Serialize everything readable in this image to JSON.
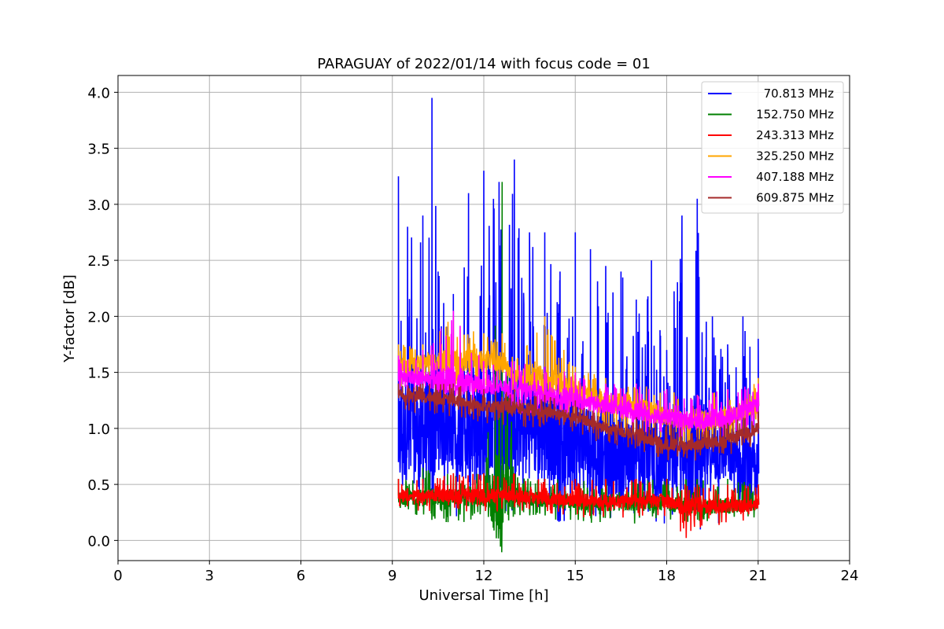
{
  "chart_data": {
    "type": "line",
    "title": "PARAGUAY of 2022/01/14 with focus code = 01",
    "xlabel": "Universal Time [h]",
    "ylabel": "Y-factor [dB]",
    "xlim": [
      0,
      24
    ],
    "ylim": [
      -0.18,
      4.15
    ],
    "xticks": [
      0,
      3,
      6,
      9,
      12,
      15,
      18,
      21,
      24
    ],
    "yticks": [
      0.0,
      0.5,
      1.0,
      1.5,
      2.0,
      2.5,
      3.0,
      3.5,
      4.0
    ],
    "xtick_labels": [
      "0",
      "3",
      "6",
      "9",
      "12",
      "15",
      "18",
      "21",
      "24"
    ],
    "ytick_labels": [
      "0.0",
      "0.5",
      "1.0",
      "1.5",
      "2.0",
      "2.5",
      "3.0",
      "3.5",
      "4.0"
    ],
    "grid": true,
    "legend_position": "top-right",
    "series": [
      {
        "name": "70.813 MHz",
        "color": "#0000ff",
        "x": [
          9.2,
          9.5,
          10.0,
          10.3,
          10.5,
          11.0,
          11.5,
          12.0,
          12.5,
          13.0,
          13.5,
          14.0,
          14.5,
          15.0,
          15.5,
          16.0,
          16.5,
          17.0,
          17.5,
          18.0,
          18.5,
          19.0,
          19.5,
          20.0,
          20.5,
          21.0
        ],
        "baseline": [
          0.9,
          1.0,
          0.9,
          1.0,
          1.0,
          1.0,
          1.0,
          1.0,
          1.0,
          1.0,
          1.0,
          1.0,
          0.9,
          0.9,
          0.8,
          0.8,
          0.7,
          0.7,
          0.7,
          0.7,
          0.8,
          0.8,
          0.8,
          0.8,
          0.6,
          0.6
        ],
        "upper": [
          3.25,
          2.8,
          2.9,
          3.95,
          2.4,
          2.2,
          3.1,
          3.3,
          3.2,
          3.4,
          2.75,
          2.75,
          2.4,
          2.75,
          2.6,
          2.45,
          2.4,
          2.15,
          2.5,
          1.7,
          2.9,
          3.05,
          2.0,
          1.75,
          2.0,
          1.8
        ],
        "lower": [
          0.3,
          0.25,
          0.25,
          0.3,
          0.25,
          0.2,
          0.25,
          0.25,
          0.25,
          0.2,
          0.2,
          0.2,
          0.15,
          0.15,
          0.15,
          0.15,
          0.1,
          0.1,
          0.1,
          0.1,
          0.05,
          0.0,
          0.05,
          0.15,
          0.2,
          0.25
        ]
      },
      {
        "name": "152.750 MHz",
        "color": "#008000",
        "x": [
          9.2,
          10.0,
          11.0,
          12.0,
          12.6,
          13.0,
          14.0,
          15.0,
          16.0,
          17.0,
          18.0,
          19.0,
          20.0,
          21.0
        ],
        "baseline": [
          0.38,
          0.38,
          0.38,
          0.38,
          0.38,
          0.38,
          0.36,
          0.34,
          0.33,
          0.33,
          0.33,
          0.3,
          0.3,
          0.32
        ],
        "upper": [
          0.55,
          0.65,
          0.6,
          0.6,
          3.2,
          0.6,
          0.55,
          0.55,
          0.55,
          0.55,
          0.55,
          0.55,
          0.55,
          0.5
        ],
        "lower": [
          0.22,
          0.2,
          0.1,
          0.2,
          0.2,
          0.2,
          0.18,
          0.16,
          0.15,
          0.15,
          0.15,
          0.15,
          0.15,
          0.2
        ]
      },
      {
        "name": "243.313 MHz",
        "color": "#ff0000",
        "x": [
          9.2,
          10.0,
          11.0,
          12.0,
          13.0,
          14.0,
          15.0,
          16.0,
          17.0,
          18.0,
          18.6,
          19.0,
          20.0,
          21.0
        ],
        "baseline": [
          0.4,
          0.4,
          0.4,
          0.4,
          0.4,
          0.38,
          0.36,
          0.35,
          0.35,
          0.35,
          0.3,
          0.3,
          0.3,
          0.32
        ],
        "upper": [
          0.55,
          0.55,
          0.6,
          0.6,
          0.6,
          0.55,
          0.55,
          0.55,
          0.55,
          0.55,
          0.5,
          0.5,
          0.5,
          0.5
        ],
        "lower": [
          0.25,
          0.25,
          0.25,
          0.25,
          0.25,
          0.22,
          0.2,
          0.2,
          0.2,
          0.2,
          0.0,
          0.1,
          0.15,
          0.2
        ]
      },
      {
        "name": "325.250 MHz",
        "color": "#ffa500",
        "x": [
          9.2,
          10.0,
          11.0,
          12.0,
          12.6,
          13.0,
          14.0,
          15.0,
          16.0,
          17.0,
          18.0,
          19.0,
          20.0,
          21.0
        ],
        "baseline": [
          1.55,
          1.6,
          1.6,
          1.6,
          1.6,
          1.45,
          1.45,
          1.35,
          1.25,
          1.2,
          1.1,
          1.05,
          1.1,
          1.2
        ],
        "upper": [
          1.75,
          1.75,
          2.0,
          1.85,
          1.85,
          1.6,
          2.0,
          1.55,
          1.45,
          1.4,
          1.35,
          1.3,
          1.35,
          1.45
        ],
        "lower": [
          1.35,
          1.4,
          1.35,
          1.3,
          1.3,
          1.2,
          1.15,
          1.05,
          0.95,
          0.9,
          0.85,
          0.8,
          0.85,
          0.95
        ]
      },
      {
        "name": "407.188 MHz",
        "color": "#ff00ff",
        "x": [
          9.2,
          10.0,
          11.0,
          12.0,
          13.0,
          14.0,
          15.0,
          16.0,
          17.0,
          18.0,
          19.0,
          20.0,
          21.0
        ],
        "baseline": [
          1.45,
          1.45,
          1.42,
          1.38,
          1.35,
          1.3,
          1.25,
          1.2,
          1.15,
          1.1,
          1.05,
          1.1,
          1.2
        ],
        "upper": [
          1.65,
          1.7,
          2.05,
          1.6,
          1.6,
          1.55,
          1.5,
          1.4,
          1.4,
          1.35,
          1.3,
          1.35,
          1.4
        ],
        "lower": [
          1.3,
          1.3,
          1.25,
          1.2,
          1.15,
          1.1,
          1.05,
          1.0,
          0.95,
          0.9,
          0.85,
          0.9,
          1.0
        ]
      },
      {
        "name": "609.875 MHz",
        "color": "#a52a2a",
        "x": [
          9.2,
          10.0,
          11.0,
          12.0,
          13.0,
          14.0,
          15.0,
          16.0,
          17.0,
          18.0,
          19.0,
          20.0,
          21.0
        ],
        "baseline": [
          1.3,
          1.28,
          1.25,
          1.2,
          1.18,
          1.15,
          1.1,
          1.0,
          0.95,
          0.85,
          0.85,
          0.9,
          1.0
        ],
        "upper": [
          1.4,
          1.4,
          1.4,
          1.35,
          1.35,
          1.3,
          1.25,
          1.15,
          1.1,
          1.05,
          1.0,
          1.05,
          1.15
        ],
        "lower": [
          1.15,
          1.1,
          1.1,
          1.05,
          1.0,
          1.0,
          0.95,
          0.85,
          0.8,
          0.7,
          0.7,
          0.75,
          0.85
        ]
      }
    ]
  }
}
